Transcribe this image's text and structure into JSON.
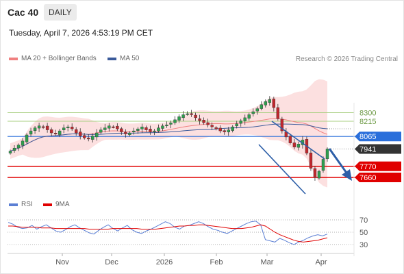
{
  "header": {
    "title": "Cac 40",
    "period": "DAILY",
    "datetime": "Tuesday, April 7, 2026 4:53:19 PM CET"
  },
  "legend": {
    "ma20": "MA 20 + Bollinger Bands",
    "ma50": "MA 50",
    "rsi": "RSI",
    "ma9": "9MA"
  },
  "credit": "Research © 2026 Trading Central",
  "colors": {
    "ma20": "#f08080",
    "ma50": "#3a5a9a",
    "bollinger_fill": "#fbd5d5",
    "up_candle": "#2e9e4e",
    "down_candle": "#c0272d",
    "support": "#e00000",
    "pivot": "#2a6fdb",
    "resistance": "#a9cf82",
    "last_price": "#333333",
    "rsi": "#5b7fd4",
    "rsi_ma": "#e00000",
    "arrow": "#2d5fa8"
  },
  "chart_data": [
    {
      "type": "candlestick",
      "x_labels": [
        "Nov",
        "Dec",
        "2026",
        "Feb",
        "Mar",
        "Apr"
      ],
      "levels": [
        {
          "name": "resistance",
          "value": 8300
        },
        {
          "name": "resistance",
          "value": 8215
        },
        {
          "name": "pivot",
          "value": 8065
        },
        {
          "name": "last",
          "value": 7941
        },
        {
          "name": "support",
          "value": 7770
        },
        {
          "name": "support",
          "value": 7660
        }
      ],
      "close_series": [
        7920,
        7950,
        7980,
        8020,
        8080,
        8120,
        8150,
        8170,
        8160,
        8130,
        8100,
        8090,
        8120,
        8150,
        8160,
        8140,
        8100,
        8070,
        8050,
        8040,
        8070,
        8100,
        8130,
        8150,
        8170,
        8160,
        8140,
        8110,
        8090,
        8100,
        8120,
        8140,
        8160,
        8130,
        8110,
        8120,
        8150,
        8170,
        8180,
        8200,
        8230,
        8260,
        8280,
        8290,
        8280,
        8250,
        8220,
        8200,
        8180,
        8160,
        8140,
        8120,
        8110,
        8130,
        8160,
        8190,
        8220,
        8250,
        8280,
        8310,
        8340,
        8380,
        8410,
        8430,
        8350,
        8240,
        8120,
        8060,
        8000,
        7960,
        7990,
        8030,
        7900,
        7750,
        7660,
        7720,
        7840,
        7941
      ]
    },
    {
      "type": "line",
      "title": "RSI",
      "y_ticks": [
        70,
        50,
        30
      ],
      "series": [
        {
          "name": "RSI",
          "values": [
            66,
            63,
            58,
            56,
            57,
            61,
            55,
            59,
            62,
            57,
            52,
            50,
            54,
            59,
            62,
            57,
            53,
            49,
            47,
            53,
            58,
            62,
            56,
            52,
            57,
            61,
            54,
            50,
            48,
            52,
            55,
            59,
            63,
            67,
            64,
            58,
            55,
            60,
            61,
            64,
            67,
            64,
            59,
            55,
            53,
            50,
            48,
            52,
            56,
            60,
            64,
            67,
            68,
            62,
            38,
            36,
            34,
            40,
            37,
            33,
            30,
            34,
            37,
            41,
            44,
            46,
            44,
            47
          ]
        },
        {
          "name": "9MA",
          "values": [
            60,
            60,
            59,
            58,
            58,
            58,
            58,
            57,
            57,
            57,
            56,
            56,
            56,
            56,
            56,
            56,
            56,
            55,
            55,
            55,
            55,
            55,
            56,
            56,
            56,
            56,
            56,
            56,
            55,
            55,
            55,
            55,
            56,
            57,
            58,
            59,
            60,
            60,
            61,
            61,
            62,
            62,
            61,
            60,
            59,
            58,
            57,
            56,
            56,
            56,
            57,
            58,
            60,
            62,
            60,
            55,
            50,
            46,
            43,
            40,
            37,
            35,
            34,
            35,
            36,
            37,
            39,
            41
          ]
        }
      ]
    }
  ]
}
